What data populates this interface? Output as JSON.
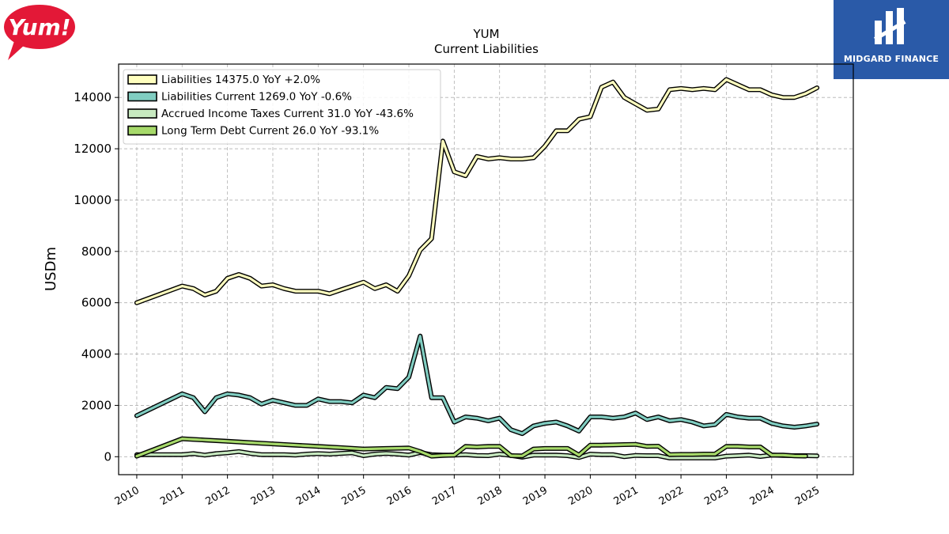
{
  "logos": {
    "left_text": "Yum!",
    "right_text": "MIDGARD FINANCE",
    "left_color": "#e31837",
    "right_color": "#2a5aa8"
  },
  "chart_data": {
    "type": "line",
    "title": "YUM",
    "subtitle": "Current  Liabilities",
    "ylabel": "USDm",
    "xlabel": "",
    "xlim": [
      2009.6,
      2025.8
    ],
    "ylim": [
      -700,
      15300
    ],
    "yticks": [
      0,
      2000,
      4000,
      6000,
      8000,
      10000,
      12000,
      14000
    ],
    "xticks": [
      "2010",
      "2011",
      "2012",
      "2013",
      "2014",
      "2015",
      "2016",
      "2017",
      "2018",
      "2019",
      "2020",
      "2021",
      "2022",
      "2023",
      "2024",
      "2025"
    ],
    "grid": true,
    "legend_position": "top-left",
    "series": [
      {
        "name": "Liabilities",
        "legend": "Liabilities  14375.0 YoY +2.0%",
        "color": "#ffffbf",
        "x": [
          2010.0,
          2011.0,
          2011.25,
          2011.5,
          2011.75,
          2012.0,
          2012.25,
          2012.5,
          2012.75,
          2013.0,
          2013.25,
          2013.5,
          2013.75,
          2014.0,
          2014.25,
          2014.5,
          2014.75,
          2015.0,
          2015.25,
          2015.5,
          2015.75,
          2016.0,
          2016.25,
          2016.5,
          2016.75,
          2017.0,
          2017.25,
          2017.5,
          2017.75,
          2018.0,
          2018.25,
          2018.5,
          2018.75,
          2019.0,
          2019.25,
          2019.5,
          2019.75,
          2020.0,
          2020.25,
          2020.5,
          2020.75,
          2021.0,
          2021.25,
          2021.5,
          2021.75,
          2022.0,
          2022.25,
          2022.5,
          2022.75,
          2023.0,
          2023.25,
          2023.5,
          2023.75,
          2024.0,
          2024.25,
          2024.5,
          2024.75,
          2025.0
        ],
        "values": [
          6000,
          6650,
          6550,
          6300,
          6450,
          6950,
          7100,
          6950,
          6650,
          6700,
          6550,
          6450,
          6450,
          6450,
          6350,
          6500,
          6650,
          6800,
          6550,
          6700,
          6450,
          7050,
          8050,
          8500,
          12300,
          11100,
          10950,
          11700,
          11600,
          11650,
          11600,
          11600,
          11650,
          12100,
          12700,
          12700,
          13150,
          13250,
          14400,
          14600,
          14000,
          13750,
          13500,
          13550,
          14300,
          14350,
          14300,
          14350,
          14300,
          14700,
          14500,
          14300,
          14300,
          14100,
          14000,
          14000,
          14150,
          14375
        ]
      },
      {
        "name": "Liabilities Current",
        "legend": "Liabilities Current  1269.0 YoY -0.6%",
        "color": "#80cdc1",
        "x": [
          2010.0,
          2011.0,
          2011.25,
          2011.5,
          2011.75,
          2012.0,
          2012.25,
          2012.5,
          2012.75,
          2013.0,
          2013.25,
          2013.5,
          2013.75,
          2014.0,
          2014.25,
          2014.5,
          2014.75,
          2015.0,
          2015.25,
          2015.5,
          2015.75,
          2016.0,
          2016.25,
          2016.5,
          2016.75,
          2017.0,
          2017.25,
          2017.5,
          2017.75,
          2018.0,
          2018.25,
          2018.5,
          2018.75,
          2019.0,
          2019.25,
          2019.5,
          2019.75,
          2020.0,
          2020.25,
          2020.5,
          2020.75,
          2021.0,
          2021.25,
          2021.5,
          2021.75,
          2022.0,
          2022.25,
          2022.5,
          2022.75,
          2023.0,
          2023.25,
          2023.5,
          2023.75,
          2024.0,
          2024.25,
          2024.5,
          2024.75,
          2025.0
        ],
        "values": [
          1600,
          2450,
          2300,
          1750,
          2300,
          2450,
          2400,
          2300,
          2050,
          2200,
          2100,
          2000,
          2000,
          2250,
          2150,
          2150,
          2100,
          2400,
          2300,
          2700,
          2650,
          3100,
          4700,
          2300,
          2300,
          1350,
          1550,
          1500,
          1400,
          1500,
          1050,
          900,
          1200,
          1300,
          1350,
          1200,
          1000,
          1550,
          1550,
          1500,
          1550,
          1700,
          1450,
          1550,
          1400,
          1450,
          1350,
          1200,
          1250,
          1650,
          1550,
          1500,
          1500,
          1300,
          1200,
          1150,
          1200,
          1269
        ]
      },
      {
        "name": "Accrued Income Taxes Current",
        "legend": "Accrued Income Taxes Current  31.0 YoY -43.6%",
        "color": "#c7e9c0",
        "x": [
          2010.0,
          2011.0,
          2011.25,
          2011.5,
          2011.75,
          2012.0,
          2012.25,
          2012.5,
          2012.75,
          2013.0,
          2013.25,
          2013.5,
          2013.75,
          2014.0,
          2014.25,
          2014.5,
          2014.75,
          2015.0,
          2015.25,
          2015.5,
          2015.75,
          2016.0,
          2016.25,
          2016.5,
          2016.75,
          2017.0,
          2017.25,
          2017.5,
          2017.75,
          2018.0,
          2018.25,
          2018.5,
          2018.75,
          2019.0,
          2019.25,
          2019.5,
          2019.75,
          2020.0,
          2020.25,
          2020.5,
          2020.75,
          2021.0,
          2021.25,
          2021.5,
          2021.75,
          2022.0,
          2022.25,
          2022.5,
          2022.75,
          2023.0,
          2023.25,
          2023.5,
          2023.75,
          2024.0,
          2024.25,
          2024.5,
          2024.75,
          2025.0
        ],
        "values": [
          80,
          80,
          120,
          60,
          120,
          150,
          200,
          130,
          80,
          80,
          80,
          60,
          100,
          120,
          100,
          130,
          150,
          40,
          100,
          130,
          100,
          60,
          160,
          80,
          60,
          60,
          80,
          50,
          40,
          100,
          50,
          -20,
          60,
          60,
          60,
          40,
          -30,
          100,
          80,
          80,
          0,
          50,
          40,
          40,
          -50,
          -50,
          -50,
          -50,
          -50,
          20,
          40,
          60,
          10,
          60,
          50,
          40,
          40,
          31
        ]
      },
      {
        "name": "Long Term Debt Current",
        "legend": "Long Term Debt Current  26.0 YoY -93.1%",
        "color": "#a6d96a",
        "x": [
          2010.0,
          2011.0,
          2011.5,
          2012.0,
          2012.5,
          2013.0,
          2013.5,
          2014.0,
          2014.5,
          2015.0,
          2015.5,
          2016.0,
          2016.25,
          2016.5,
          2016.75,
          2017.0,
          2017.25,
          2017.5,
          2017.75,
          2018.0,
          2018.25,
          2018.5,
          2018.75,
          2019.0,
          2019.25,
          2019.5,
          2019.75,
          2020.0,
          2020.25,
          2020.5,
          2020.75,
          2021.0,
          2021.25,
          2021.5,
          2021.75,
          2022.0,
          2022.25,
          2022.5,
          2022.75,
          2023.0,
          2023.25,
          2023.5,
          2023.75,
          2024.0,
          2024.25,
          2024.5,
          2024.75
        ],
        "values": [
          20,
          700,
          650,
          600,
          550,
          500,
          450,
          400,
          350,
          300,
          320,
          340,
          200,
          20,
          50,
          60,
          400,
          380,
          400,
          400,
          40,
          30,
          300,
          320,
          320,
          320,
          60,
          450,
          450,
          460,
          470,
          480,
          400,
          410,
          80,
          90,
          90,
          100,
          100,
          400,
          400,
          380,
          380,
          60,
          60,
          30,
          26
        ]
      }
    ]
  }
}
